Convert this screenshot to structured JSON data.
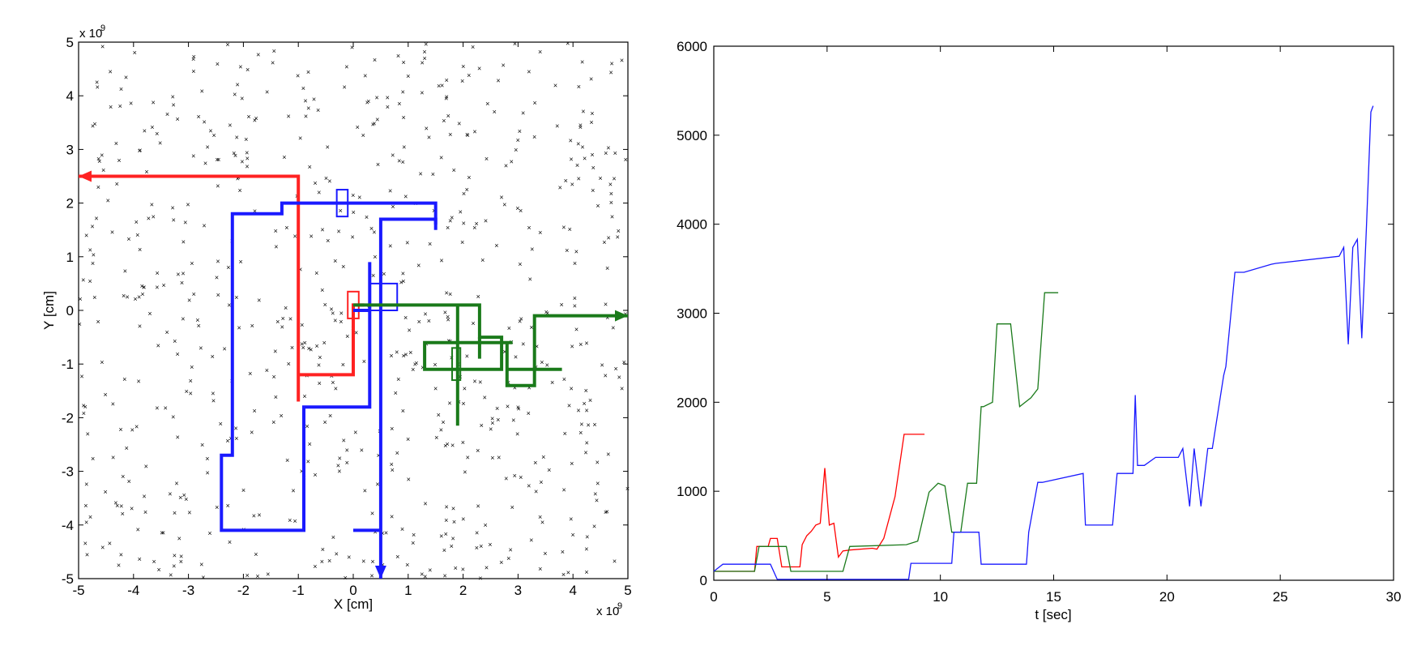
{
  "chart_data": [
    {
      "type": "scatter",
      "title": "",
      "xlabel": "X [cm]",
      "ylabel": "Y [cm]",
      "x_exponent": "x 10",
      "y_exponent": "x 10",
      "exponent_power": "9",
      "xlim": [
        -5,
        5
      ],
      "ylim": [
        -5,
        5
      ],
      "xticks": [
        "-5",
        "-4",
        "-3",
        "-2",
        "-1",
        "0",
        "1",
        "2",
        "3",
        "4",
        "5"
      ],
      "yticks": [
        "-5",
        "-4",
        "-3",
        "-2",
        "-1",
        "0",
        "1",
        "2",
        "3",
        "4",
        "5"
      ],
      "grid": false,
      "marker_color": "#333333",
      "marker_count": 700,
      "paths": [
        {
          "color": "#ff2222",
          "points": [
            [
              -1.0,
              -1.7
            ],
            [
              -1.0,
              2.5
            ],
            [
              -5.0,
              2.5
            ]
          ],
          "arrow_end": true
        },
        {
          "color": "#ff2222",
          "points": [
            [
              -1.0,
              -1.2
            ],
            [
              0.0,
              -1.2
            ],
            [
              0.0,
              0.1
            ],
            [
              0.2,
              0.1
            ]
          ],
          "arrow_end": false
        },
        {
          "color": "#ff2222",
          "rect": [
            -0.1,
            -0.15,
            0.1,
            0.35
          ]
        },
        {
          "color": "#1a1aff",
          "points": [
            [
              1.5,
              1.6
            ],
            [
              1.5,
              2.0
            ],
            [
              -1.3,
              2.0
            ],
            [
              -1.3,
              1.8
            ],
            [
              -2.2,
              1.8
            ],
            [
              -2.2,
              -2.7
            ],
            [
              -2.4,
              -2.7
            ],
            [
              -2.4,
              -4.1
            ],
            [
              -0.9,
              -4.1
            ],
            [
              -0.9,
              -1.8
            ],
            [
              0.3,
              -1.8
            ],
            [
              0.3,
              0.9
            ]
          ],
          "arrow_end": false
        },
        {
          "color": "#1a1aff",
          "points": [
            [
              1.5,
              1.5
            ],
            [
              1.5,
              1.7
            ],
            [
              0.5,
              1.7
            ],
            [
              0.5,
              -5.0
            ]
          ],
          "arrow_end": true
        },
        {
          "color": "#1a1aff",
          "points": [
            [
              0.0,
              -4.1
            ],
            [
              0.5,
              -4.1
            ]
          ],
          "arrow_end": false
        },
        {
          "color": "#1a1aff",
          "rect": [
            0.3,
            0.0,
            0.8,
            0.5
          ]
        },
        {
          "color": "#1a1aff",
          "points": [
            [
              0.0,
              0.0
            ],
            [
              0.3,
              0.0
            ]
          ],
          "arrow_end": false
        },
        {
          "color": "#1a1aff",
          "rect": [
            -0.3,
            1.75,
            -0.1,
            2.25
          ]
        },
        {
          "color": "#1a7a1a",
          "points": [
            [
              0.0,
              0.1
            ],
            [
              2.3,
              0.1
            ],
            [
              2.3,
              -0.5
            ],
            [
              2.7,
              -0.5
            ],
            [
              2.7,
              -1.1
            ],
            [
              1.3,
              -1.1
            ],
            [
              1.3,
              -0.6
            ],
            [
              2.9,
              -0.6
            ]
          ],
          "arrow_end": false
        },
        {
          "color": "#1a7a1a",
          "points": [
            [
              1.9,
              0.1
            ],
            [
              1.9,
              -2.15
            ]
          ],
          "arrow_end": false
        },
        {
          "color": "#1a7a1a",
          "points": [
            [
              2.3,
              -0.5
            ],
            [
              2.3,
              -0.9
            ]
          ],
          "arrow_end": false
        },
        {
          "color": "#1a7a1a",
          "points": [
            [
              2.8,
              -1.1
            ],
            [
              3.8,
              -1.1
            ]
          ],
          "arrow_end": false
        },
        {
          "color": "#1a7a1a",
          "points": [
            [
              2.8,
              -0.6
            ],
            [
              2.8,
              -1.4
            ],
            [
              3.3,
              -1.4
            ],
            [
              3.3,
              -0.1
            ],
            [
              5.0,
              -0.1
            ]
          ],
          "arrow_end": true
        },
        {
          "color": "#1a7a1a",
          "rect": [
            1.8,
            -1.3,
            1.95,
            -0.7
          ]
        }
      ]
    },
    {
      "type": "line",
      "title": "",
      "xlabel": "t [sec]",
      "ylabel": "",
      "xlim": [
        0,
        30
      ],
      "ylim": [
        0,
        6000
      ],
      "xticks": [
        "0",
        "5",
        "10",
        "15",
        "20",
        "25",
        "30"
      ],
      "yticks": [
        "0",
        "1000",
        "2000",
        "3000",
        "4000",
        "5000",
        "6000"
      ],
      "grid": false,
      "series": [
        {
          "color": "#ff0000",
          "x": [
            0,
            1.8,
            1.9,
            2.4,
            2.5,
            2.8,
            3.0,
            3.8,
            3.9,
            4.1,
            4.3,
            4.5,
            4.7,
            4.9,
            5.1,
            5.3,
            5.5,
            5.7,
            6.0,
            7.0,
            7.2,
            7.5,
            8.0,
            8.4,
            8.6,
            9.3
          ],
          "y": [
            100,
            100,
            380,
            380,
            470,
            470,
            150,
            150,
            400,
            500,
            550,
            620,
            640,
            1260,
            620,
            640,
            260,
            330,
            340,
            360,
            350,
            470,
            940,
            1640,
            1640,
            1640
          ]
        },
        {
          "color": "#1a7a1a",
          "x": [
            0,
            1.8,
            2.0,
            3.2,
            3.4,
            5.7,
            6.0,
            8.5,
            9.0,
            9.5,
            9.9,
            10.2,
            10.5,
            10.9,
            11.2,
            11.6,
            11.8,
            11.9,
            12.3,
            12.5,
            13.1,
            13.5,
            14.0,
            14.3,
            14.6,
            15.2
          ],
          "y": [
            100,
            100,
            380,
            380,
            100,
            100,
            380,
            400,
            440,
            990,
            1090,
            1060,
            540,
            540,
            1090,
            1090,
            1950,
            1950,
            2000,
            2880,
            2880,
            1950,
            2050,
            2150,
            3230,
            3230
          ]
        },
        {
          "color": "#1a1aff",
          "x": [
            0,
            0.4,
            2.5,
            2.8,
            8.6,
            8.7,
            10.5,
            10.6,
            11.7,
            11.8,
            13.8,
            13.9,
            14.3,
            14.5,
            16.3,
            16.4,
            17.6,
            17.8,
            18.5,
            18.6,
            18.7,
            19.0,
            19.5,
            20.5,
            20.7,
            21.0,
            21.2,
            21.5,
            21.8,
            22.0,
            22.5,
            22.6,
            23.0,
            23.4,
            24.6,
            24.8,
            27.6,
            27.8,
            28.0,
            28.2,
            28.4,
            28.6,
            28.8,
            29.0,
            29.1
          ],
          "y": [
            100,
            180,
            180,
            10,
            10,
            190,
            190,
            540,
            540,
            180,
            180,
            540,
            1100,
            1100,
            1200,
            620,
            620,
            1200,
            1200,
            2080,
            1290,
            1290,
            1380,
            1380,
            1480,
            830,
            1480,
            830,
            1480,
            1480,
            2300,
            2400,
            3460,
            3460,
            3550,
            3560,
            3640,
            3740,
            2650,
            3740,
            3830,
            2720,
            3940,
            5260,
            5330
          ]
        }
      ]
    }
  ]
}
